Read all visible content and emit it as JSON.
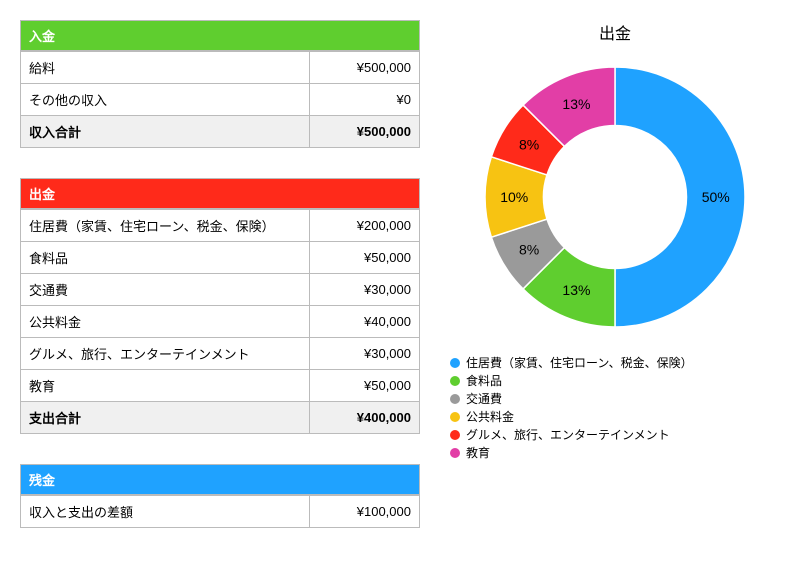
{
  "income": {
    "header": "入金",
    "header_bg": "#5fce2f",
    "rows": [
      {
        "label": "給料",
        "value": "¥500,000"
      },
      {
        "label": "その他の収入",
        "value": "¥0"
      }
    ],
    "total_label": "収入合計",
    "total_value": "¥500,000"
  },
  "expense": {
    "header": "出金",
    "header_bg": "#ff2a1a",
    "rows": [
      {
        "label": "住居費（家賃、住宅ローン、税金、保険）",
        "value": "¥200,000"
      },
      {
        "label": "食料品",
        "value": "¥50,000"
      },
      {
        "label": "交通費",
        "value": "¥30,000"
      },
      {
        "label": "公共料金",
        "value": "¥40,000"
      },
      {
        "label": "グルメ、旅行、エンターテインメント",
        "value": "¥30,000"
      },
      {
        "label": "教育",
        "value": "¥50,000"
      }
    ],
    "total_label": "支出合計",
    "total_value": "¥400,000"
  },
  "balance": {
    "header": "残金",
    "header_bg": "#1fa2ff",
    "rows": [
      {
        "label": "収入と支出の差額",
        "value": "¥100,000"
      }
    ]
  },
  "chart": {
    "type": "donut",
    "title": "出金",
    "title_fontsize": 16,
    "inner_radius_ratio": 0.55,
    "background_color": "#ffffff",
    "label_fontsize": 14,
    "label_color": "#000000",
    "slices": [
      {
        "name": "住居費（家賃、住宅ローン、税金、保険）",
        "value": 200000,
        "pct_label": "50%",
        "color": "#1fa2ff"
      },
      {
        "name": "食料品",
        "value": 50000,
        "pct_label": "13%",
        "color": "#5fce2f"
      },
      {
        "name": "交通費",
        "value": 30000,
        "pct_label": "8%",
        "color": "#9a9a9a"
      },
      {
        "name": "公共料金",
        "value": 40000,
        "pct_label": "10%",
        "color": "#f7c312"
      },
      {
        "name": "グルメ、旅行、エンターテインメント",
        "value": 30000,
        "pct_label": "8%",
        "color": "#ff2a1a"
      },
      {
        "name": "教育",
        "value": 50000,
        "pct_label": "13%",
        "color": "#e23ea6"
      }
    ]
  }
}
